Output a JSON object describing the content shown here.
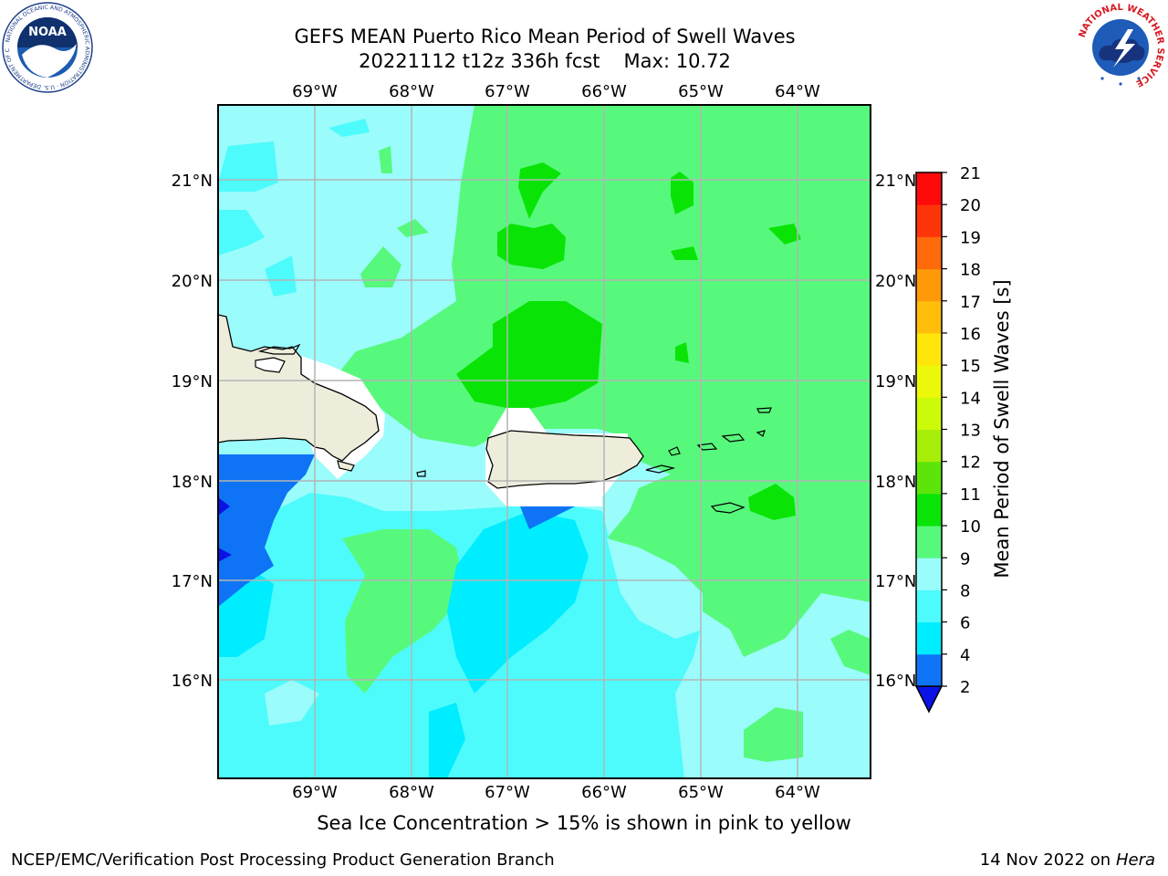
{
  "title": {
    "line1": "GEFS MEAN Puerto Rico Mean Period of Swell Waves",
    "cycle": "20221112 t12z 336h fcst",
    "max": "Max: 10.72"
  },
  "axes": {
    "longitudes": [
      "69°W",
      "68°W",
      "67°W",
      "66°W",
      "65°W",
      "64°W"
    ],
    "latitudes": [
      "21°N",
      "20°N",
      "19°N",
      "18°N",
      "17°N",
      "16°N"
    ]
  },
  "colorbar": {
    "label": "Mean Period of Swell Waves [s]",
    "ticks": [
      "2",
      "4",
      "6",
      "8",
      "9",
      "10",
      "11",
      "12",
      "13",
      "14",
      "15",
      "16",
      "17",
      "18",
      "19",
      "20",
      "21"
    ],
    "colors": [
      "#0a12e6",
      "#0e74f5",
      "#00ecff",
      "#4dfbfc",
      "#9bfcfc",
      "#57f97c",
      "#09e406",
      "#5de50b",
      "#a7ee0a",
      "#ccfb09",
      "#eef80a",
      "#ffe60a",
      "#ffbe0a",
      "#ff990a",
      "#ff6a0a",
      "#ff350a",
      "#ff0a0a"
    ]
  },
  "footnote": "Sea Ice Concentration > 15% is shown in pink to yellow",
  "credits": {
    "left": "NCEP/EMC/Verification Post Processing Product Generation Branch",
    "date": "14 Nov 2022 on",
    "host": "Hera"
  },
  "logos": {
    "noaa": "NOAA",
    "noaa_ring": "NATIONAL OCEANIC AND ATMOSPHERIC ADMINISTRATION · U.S. DEPARTMENT OF COMMERCE",
    "nws_ring": "NATIONAL WEATHER SERVICE"
  },
  "style": {
    "land": "#eeeddc",
    "grid": "#b4b4b4",
    "coast": "#000000"
  }
}
